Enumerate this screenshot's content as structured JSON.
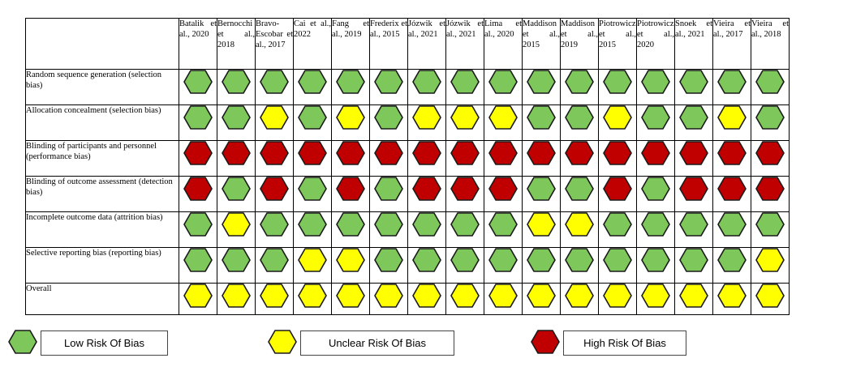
{
  "colors": {
    "low": "#7ec75a",
    "unclear": "#ffff00",
    "high": "#c00000",
    "stroke": "#1a1a1a"
  },
  "studies": [
    "Batalik et al., 2020",
    "Bernocchi et al., 2018",
    "Bravo-Escobar et al., 2017",
    "Cai et al., 2022",
    "Fang et al., 2019",
    "Frederix et al., 2015",
    "Józwik et al., 2021",
    "Józwik et al., 2021",
    "Lima et al., 2020",
    "Maddison et al., 2015",
    "Maddison et al., 2019",
    "Piotrowicz et al., 2015",
    "Piotrowicz et al., 2020",
    "Snoek et al., 2021",
    "Vieira et al., 2017",
    "Vieira et al., 2018"
  ],
  "domains": [
    {
      "label": "Random sequence generation (selection bias)",
      "ratings": [
        "low",
        "low",
        "low",
        "low",
        "low",
        "low",
        "low",
        "low",
        "low",
        "low",
        "low",
        "low",
        "low",
        "low",
        "low",
        "low"
      ]
    },
    {
      "label": "Allocation concealment (selection bias)",
      "ratings": [
        "low",
        "low",
        "unclear",
        "low",
        "unclear",
        "low",
        "unclear",
        "unclear",
        "unclear",
        "low",
        "low",
        "unclear",
        "low",
        "low",
        "unclear",
        "low"
      ]
    },
    {
      "label": "Blinding of participants and personnel (performance bias)",
      "ratings": [
        "high",
        "high",
        "high",
        "high",
        "high",
        "high",
        "high",
        "high",
        "high",
        "high",
        "high",
        "high",
        "high",
        "high",
        "high",
        "high"
      ]
    },
    {
      "label": "Blinding of outcome assessment (detection bias)",
      "ratings": [
        "high",
        "low",
        "high",
        "low",
        "high",
        "low",
        "high",
        "high",
        "high",
        "low",
        "low",
        "high",
        "low",
        "high",
        "high",
        "high"
      ]
    },
    {
      "label": "Incomplete outcome data (attrition bias)",
      "ratings": [
        "low",
        "unclear",
        "low",
        "low",
        "low",
        "low",
        "low",
        "low",
        "low",
        "unclear",
        "unclear",
        "low",
        "low",
        "low",
        "low",
        "low"
      ]
    },
    {
      "label": "Selective reporting bias (reporting bias)",
      "ratings": [
        "low",
        "low",
        "low",
        "unclear",
        "unclear",
        "low",
        "low",
        "low",
        "low",
        "low",
        "low",
        "low",
        "low",
        "low",
        "low",
        "unclear"
      ]
    },
    {
      "label": "Overall",
      "ratings": [
        "unclear",
        "unclear",
        "unclear",
        "unclear",
        "unclear",
        "unclear",
        "unclear",
        "unclear",
        "unclear",
        "unclear",
        "unclear",
        "unclear",
        "unclear",
        "unclear",
        "unclear",
        "unclear"
      ]
    }
  ],
  "legend": {
    "low": "Low Risk Of Bias",
    "unclear": "Unclear Risk Of Bias",
    "high": "High Risk Of Bias"
  }
}
